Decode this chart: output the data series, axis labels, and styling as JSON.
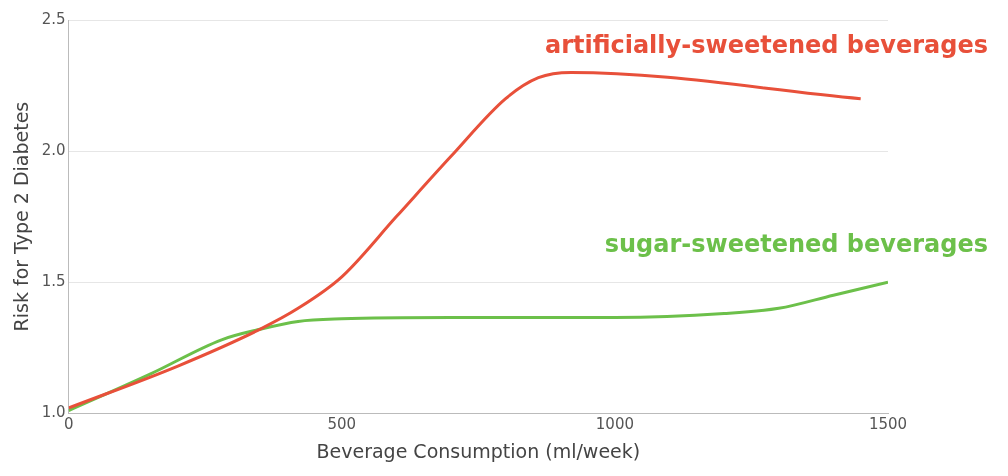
{
  "chart_data": {
    "type": "line",
    "xlabel": "Beverage Consumption (ml/week)",
    "ylabel": "Risk for Type 2 Diabetes",
    "xlim": [
      0,
      1500
    ],
    "xticks": [
      0,
      500,
      1000,
      1500
    ],
    "ylim": [
      1.0,
      2.5
    ],
    "yticks": [
      {
        "value": 1.0,
        "label": "1.0"
      },
      {
        "value": 1.5,
        "label": "1.5"
      },
      {
        "value": 2.0,
        "label": "2.0"
      },
      {
        "value": 2.5,
        "label": "2.5"
      }
    ],
    "grid": "y",
    "legend": false,
    "marker": "none",
    "series": [
      {
        "name": "artificially-sweetened beverages",
        "color": "#e8503a",
        "x": [
          0,
          200,
          350,
          420,
          500,
          600,
          700,
          800,
          860,
          920,
          1450
        ],
        "values": [
          1.02,
          1.18,
          1.32,
          1.4,
          1.52,
          1.75,
          1.98,
          2.2,
          2.28,
          2.3,
          2.2
        ]
      },
      {
        "name": "sugar-sweetened beverages",
        "color": "#6cc04a",
        "x": [
          0,
          150,
          280,
          350,
          420,
          500,
          700,
          1000,
          1200,
          1300,
          1400,
          1500
        ],
        "values": [
          1.01,
          1.15,
          1.28,
          1.32,
          1.35,
          1.36,
          1.365,
          1.365,
          1.38,
          1.4,
          1.45,
          1.5
        ]
      }
    ]
  }
}
